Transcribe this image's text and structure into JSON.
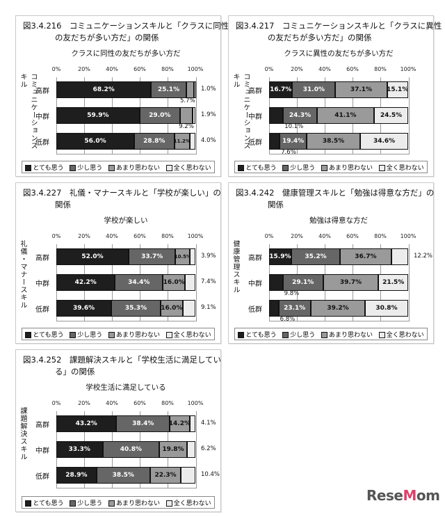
{
  "legend": [
    "とても思う",
    "少し思う",
    "あまり思わない",
    "全く思わない"
  ],
  "colors": [
    "#1e1e1e",
    "#666666",
    "#9a9a9a",
    "#ececec"
  ],
  "text_colors": [
    "#ffffff",
    "#ffffff",
    "#111111",
    "#111111"
  ],
  "ticks": [
    "0%",
    "20%",
    "40%",
    "60%",
    "80%",
    "100%"
  ],
  "rows": [
    "高群",
    "中群",
    "低群"
  ],
  "logo": "ReseMom",
  "chart_data": [
    {
      "type": "bar",
      "stacked": true,
      "orientation": "horizontal",
      "title_lines": [
        "図3.4.216　コミュニケーションスキルと「クラスに同性",
        "の友だちが多い方だ」の関係"
      ],
      "subtitle": "クラスに同性の友だちが多い方だ",
      "ylabel": "コミュニケーションスキル",
      "xlim": [
        0,
        100
      ],
      "series": [
        {
          "name": "とても思う",
          "values": [
            68.2,
            59.9,
            56.0
          ]
        },
        {
          "name": "少し思う",
          "values": [
            25.1,
            29.0,
            28.8
          ]
        },
        {
          "name": "あまり思わない",
          "values": [
            5.7,
            9.2,
            11.2
          ]
        },
        {
          "name": "全く思わない",
          "values": [
            1.0,
            1.9,
            4.0
          ]
        }
      ]
    },
    {
      "type": "bar",
      "stacked": true,
      "orientation": "horizontal",
      "title_lines": [
        "図3.4.217　コミュニケーションスキルと「クラスに異性",
        "の友だちが多い方だ」の関係"
      ],
      "subtitle": "クラスに異性の友だちが多い方だ",
      "ylabel": "コミュニケーションスキル",
      "xlim": [
        0,
        100
      ],
      "series": [
        {
          "name": "とても思う",
          "values": [
            16.7,
            10.1,
            7.6
          ]
        },
        {
          "name": "少し思う",
          "values": [
            31.0,
            24.3,
            19.4
          ]
        },
        {
          "name": "あまり思わない",
          "values": [
            37.1,
            41.1,
            38.5
          ]
        },
        {
          "name": "全く思わない",
          "values": [
            15.1,
            24.5,
            34.6
          ]
        }
      ]
    },
    {
      "type": "bar",
      "stacked": true,
      "orientation": "horizontal",
      "title_lines": [
        "図3.4.227　礼儀・マナースキルと「学校が楽しい」の",
        "関係"
      ],
      "subtitle": "学校が楽しい",
      "ylabel": "礼儀・マナースキル",
      "xlim": [
        0,
        100
      ],
      "series": [
        {
          "name": "とても思う",
          "values": [
            52.0,
            42.2,
            39.6
          ]
        },
        {
          "name": "少し思う",
          "values": [
            33.7,
            34.4,
            35.3
          ]
        },
        {
          "name": "あまり思わない",
          "values": [
            10.5,
            16.0,
            16.0
          ]
        },
        {
          "name": "全く思わない",
          "values": [
            3.9,
            7.4,
            9.1
          ]
        }
      ]
    },
    {
      "type": "bar",
      "stacked": true,
      "orientation": "horizontal",
      "title_lines": [
        "図3.4.242　健康管理スキルと「勉強は得意な方だ」の",
        "関係"
      ],
      "subtitle": "勉強は得意な方だ",
      "ylabel": "健康管理スキル",
      "xlim": [
        0,
        100
      ],
      "series": [
        {
          "name": "とても思う",
          "values": [
            15.9,
            9.8,
            6.8
          ]
        },
        {
          "name": "少し思う",
          "values": [
            35.2,
            29.1,
            23.1
          ]
        },
        {
          "name": "あまり思わない",
          "values": [
            36.7,
            39.7,
            39.2
          ]
        },
        {
          "name": "全く思わない",
          "values": [
            12.2,
            21.5,
            30.8
          ]
        }
      ]
    },
    {
      "type": "bar",
      "stacked": true,
      "orientation": "horizontal",
      "title_lines": [
        "図3.4.252　課題解決スキルと「学校生活に満足してい",
        "る」の関係"
      ],
      "subtitle": "学校生活に満足している",
      "ylabel": "課題解決スキル",
      "xlim": [
        0,
        100
      ],
      "series": [
        {
          "name": "とても思う",
          "values": [
            43.2,
            33.3,
            28.9
          ]
        },
        {
          "name": "少し思う",
          "values": [
            38.4,
            40.8,
            38.5
          ]
        },
        {
          "name": "あまり思わない",
          "values": [
            14.2,
            19.8,
            22.3
          ]
        },
        {
          "name": "全く思わない",
          "values": [
            4.1,
            6.2,
            10.4
          ]
        }
      ]
    }
  ]
}
